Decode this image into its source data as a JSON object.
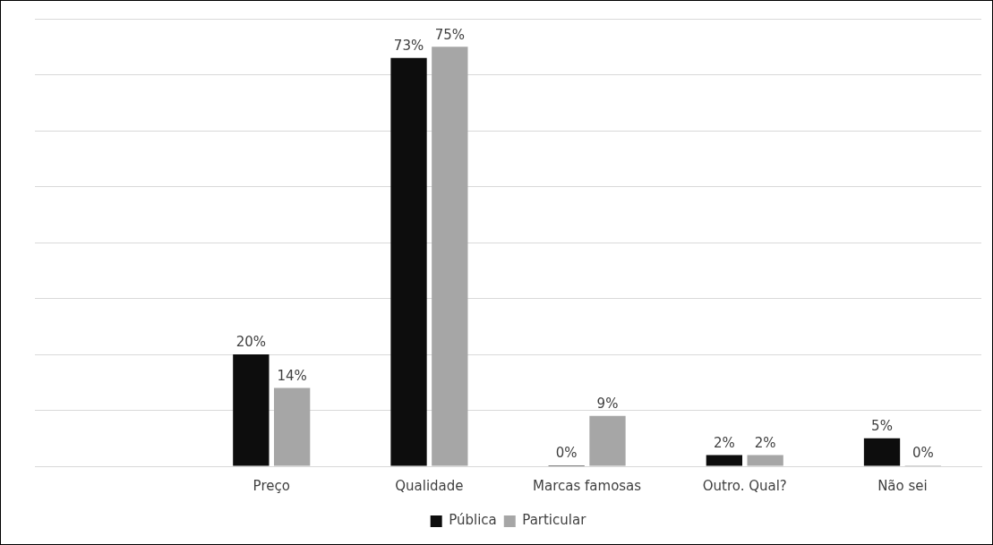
{
  "chart_data": {
    "type": "bar",
    "categories": [
      null,
      "Preço",
      "Qualidade",
      "Marcas famosas",
      "Outro. Qual?",
      "Não sei"
    ],
    "series": [
      {
        "name": "Pública",
        "color": "#0d0d0d",
        "values": [
          null,
          20,
          73,
          0,
          2,
          5
        ],
        "value_labels": [
          null,
          "20%",
          "73%",
          "0%",
          "2%",
          "5%"
        ]
      },
      {
        "name": "Particular",
        "color": "#a6a6a6",
        "values": [
          null,
          14,
          75,
          9,
          2,
          0
        ],
        "value_labels": [
          null,
          "14%",
          "75%",
          "9%",
          "2%",
          "0%"
        ]
      }
    ],
    "ylim": [
      0,
      80
    ],
    "yticks": [
      {
        "value": 0,
        "label": null
      },
      {
        "value": 10,
        "label": null
      },
      {
        "value": 20,
        "label": null
      },
      {
        "value": 30,
        "label": null
      },
      {
        "value": 40,
        "label": null
      },
      {
        "value": 50,
        "label": null
      },
      {
        "value": 60,
        "label": null
      },
      {
        "value": 70,
        "label": null
      },
      {
        "value": 80,
        "label": null
      }
    ],
    "tick_labels": "x",
    "grid": "y",
    "legend": "bottom"
  }
}
